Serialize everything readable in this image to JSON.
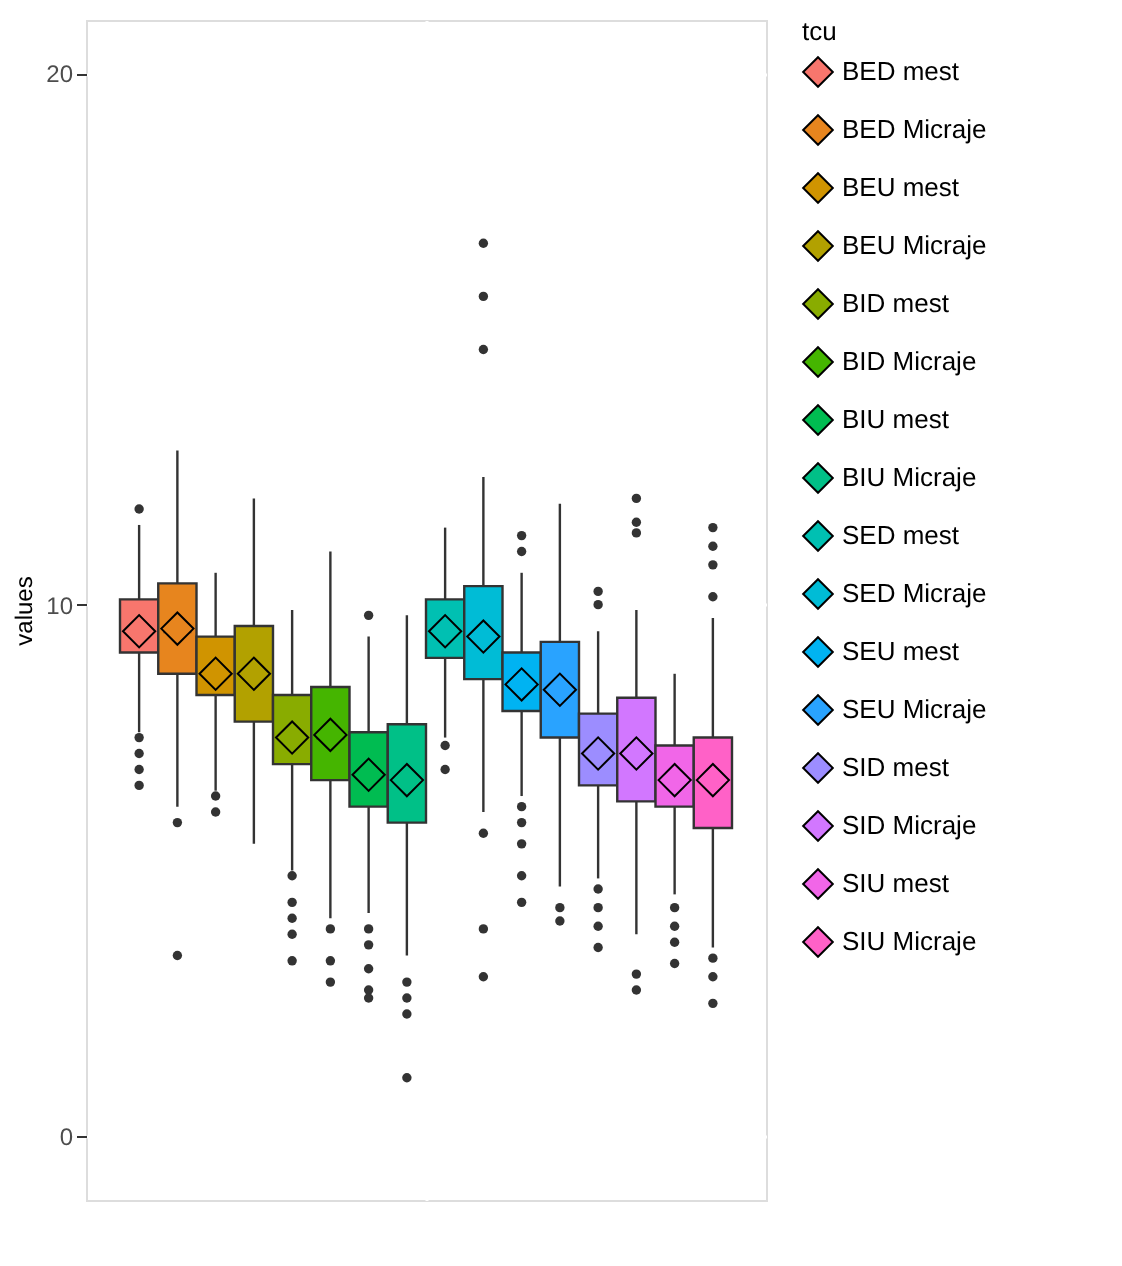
{
  "chart_data": {
    "type": "box",
    "ylabel": "values",
    "legend_title": "tcu",
    "categories": [
      null
    ],
    "ylim": [
      -1.2,
      21
    ],
    "yticks": [
      0,
      10,
      20
    ],
    "grid": true,
    "legend": "right",
    "series": [
      {
        "name": "BED mest",
        "color": "#F8766D",
        "boxes": [
          {
            "low": 7.6,
            "q1": 9.1,
            "median": 9.5,
            "q3": 10.1,
            "high": 11.5,
            "mean": 9.5,
            "outliers": [
              11.8,
              7.5,
              7.2,
              6.9,
              6.6
            ]
          }
        ]
      },
      {
        "name": "BED Micraje",
        "color": "#E7851E",
        "boxes": [
          {
            "low": 6.2,
            "q1": 8.7,
            "median": 9.5,
            "q3": 10.4,
            "high": 12.9,
            "mean": 9.55,
            "outliers": [
              5.9,
              3.4
            ]
          }
        ]
      },
      {
        "name": "BEU mest",
        "color": "#D09400",
        "boxes": [
          {
            "low": 6.5,
            "q1": 8.3,
            "median": 8.7,
            "q3": 9.4,
            "high": 10.6,
            "mean": 8.7,
            "outliers": [
              6.4,
              6.1
            ]
          }
        ]
      },
      {
        "name": "BEU Micraje",
        "color": "#B2A100",
        "boxes": [
          {
            "low": 5.5,
            "q1": 7.8,
            "median": 8.7,
            "q3": 9.6,
            "high": 12.0,
            "mean": 8.7
          }
        ]
      },
      {
        "name": "BID mest",
        "color": "#89AC00",
        "boxes": [
          {
            "low": 5.0,
            "q1": 7.0,
            "median": 7.5,
            "q3": 8.3,
            "high": 9.9,
            "mean": 7.5,
            "outliers": [
              4.9,
              4.4,
              4.1,
              3.8,
              3.3
            ]
          }
        ]
      },
      {
        "name": "BID Micraje",
        "color": "#45B500",
        "boxes": [
          {
            "low": 4.1,
            "q1": 6.7,
            "median": 7.5,
            "q3": 8.45,
            "high": 11.0,
            "mean": 7.55,
            "outliers": [
              3.9,
              3.3,
              2.9
            ]
          }
        ]
      },
      {
        "name": "BIU mest",
        "color": "#00BC51",
        "boxes": [
          {
            "low": 4.2,
            "q1": 6.2,
            "median": 6.8,
            "q3": 7.6,
            "high": 9.4,
            "mean": 6.8,
            "outliers": [
              9.8,
              3.9,
              3.6,
              3.15,
              2.75,
              2.6
            ]
          }
        ]
      },
      {
        "name": "BIU Micraje",
        "color": "#00C087",
        "boxes": [
          {
            "low": 3.4,
            "q1": 5.9,
            "median": 6.7,
            "q3": 7.75,
            "high": 9.8,
            "mean": 6.7,
            "outliers": [
              2.9,
              2.6,
              2.3,
              1.1
            ]
          }
        ]
      },
      {
        "name": "SED mest",
        "color": "#00C0B2",
        "boxes": [
          {
            "low": 7.5,
            "q1": 9.0,
            "median": 9.5,
            "q3": 10.1,
            "high": 11.45,
            "mean": 9.5,
            "outliers": [
              7.35,
              6.9
            ]
          }
        ]
      },
      {
        "name": "SED Micraje",
        "color": "#00BCD6",
        "boxes": [
          {
            "low": 6.1,
            "q1": 8.6,
            "median": 9.4,
            "q3": 10.35,
            "high": 12.4,
            "mean": 9.4,
            "outliers": [
              14.8,
              15.8,
              16.8,
              5.7,
              3.9,
              3.0
            ]
          }
        ]
      },
      {
        "name": "SEU mest",
        "color": "#00B3F2",
        "boxes": [
          {
            "low": 6.4,
            "q1": 8.0,
            "median": 8.5,
            "q3": 9.1,
            "high": 10.6,
            "mean": 8.5,
            "outliers": [
              11.3,
              11.0,
              6.2,
              5.9,
              5.5,
              4.9,
              4.4
            ]
          }
        ]
      },
      {
        "name": "SEU Micraje",
        "color": "#29A3FF",
        "boxes": [
          {
            "low": 4.7,
            "q1": 7.5,
            "median": 8.4,
            "q3": 9.3,
            "high": 11.9,
            "mean": 8.4,
            "outliers": [
              4.3,
              4.05
            ]
          }
        ]
      },
      {
        "name": "SID mest",
        "color": "#9C8DFF",
        "boxes": [
          {
            "low": 4.85,
            "q1": 6.6,
            "median": 7.2,
            "q3": 7.95,
            "high": 9.5,
            "mean": 7.2,
            "outliers": [
              10.25,
              10.0,
              4.65,
              4.3,
              3.95,
              3.55
            ]
          }
        ]
      },
      {
        "name": "SID Micraje",
        "color": "#D277FF",
        "boxes": [
          {
            "low": 3.8,
            "q1": 6.3,
            "median": 7.2,
            "q3": 8.25,
            "high": 9.9,
            "mean": 7.2,
            "outliers": [
              12.0,
              11.55,
              11.35,
              3.05,
              2.75
            ]
          }
        ]
      },
      {
        "name": "SIU mest",
        "color": "#F166E8",
        "boxes": [
          {
            "low": 4.55,
            "q1": 6.2,
            "median": 6.7,
            "q3": 7.35,
            "high": 8.7,
            "mean": 6.7,
            "outliers": [
              4.3,
              3.95,
              3.65,
              3.25
            ]
          }
        ]
      },
      {
        "name": "SIU Micraje",
        "color": "#FF61C7",
        "boxes": [
          {
            "low": 3.55,
            "q1": 5.8,
            "median": 6.7,
            "q3": 7.5,
            "high": 9.75,
            "mean": 6.7,
            "outliers": [
              10.15,
              10.75,
              11.1,
              11.45,
              3.35,
              3.0,
              2.5
            ]
          }
        ]
      }
    ]
  }
}
